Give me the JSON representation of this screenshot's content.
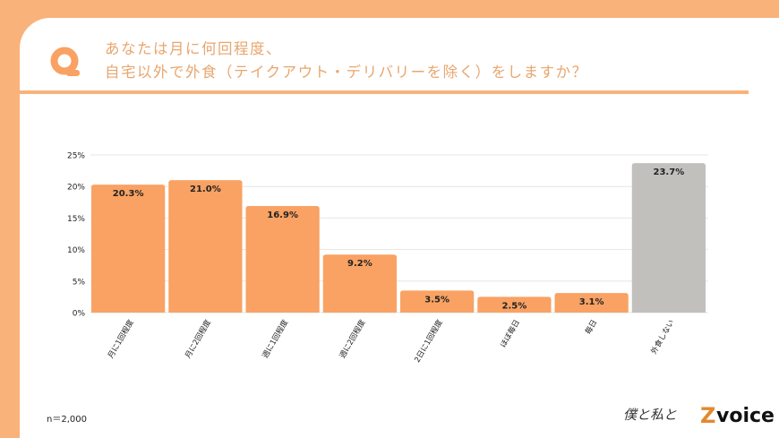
{
  "header": {
    "q_icon": "Q",
    "title_line1": "あなたは月に何回程度、",
    "title_line2": "自宅以外で外食（テイクアウト・デリバリーを除く）をしますか？"
  },
  "footer": {
    "sample_size": "n＝2,000"
  },
  "logo": {
    "handwritten": "僕と私と",
    "brand_mark": "Z",
    "brand": "voice"
  },
  "colors": {
    "background": "#F9B27A",
    "bar": "#F9A263",
    "bar_highlight": "#C2C0BD",
    "title": "#E8A66E"
  },
  "chart_data": {
    "type": "bar",
    "categories": [
      "月に1回程度",
      "月に2回程度",
      "週に1回程度",
      "週に2回程度",
      "2日に1回程度",
      "ほぼ毎日",
      "毎日",
      "外食しない"
    ],
    "values": [
      20.3,
      21.0,
      16.9,
      9.2,
      3.5,
      2.5,
      3.1,
      23.7
    ],
    "data_labels": [
      "20.3%",
      "21.0%",
      "16.9%",
      "9.2%",
      "3.5%",
      "2.5%",
      "3.1%",
      "23.7%"
    ],
    "ylim": [
      0,
      25
    ],
    "yticks": [
      "0%",
      "5%",
      "10%",
      "15%",
      "20%",
      "25%"
    ],
    "grid": true,
    "xlabel": "",
    "ylabel": ""
  }
}
